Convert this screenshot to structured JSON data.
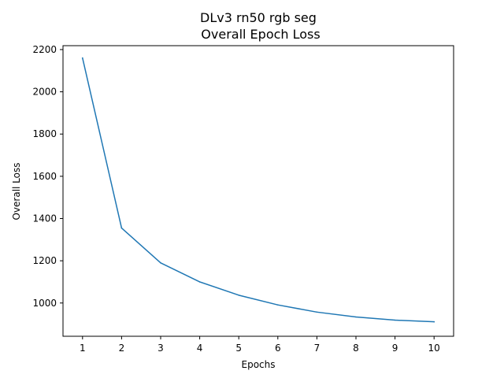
{
  "chart_data": {
    "type": "line",
    "title": "DLv3 rn50 rgb seg",
    "subtitle": "Overall Epoch Loss",
    "xlabel": "Epochs",
    "ylabel": "Overall Loss",
    "x": [
      1,
      2,
      3,
      4,
      5,
      6,
      7,
      8,
      9,
      10
    ],
    "series": [
      {
        "values": [
          2160,
          1355,
          1190,
          1100,
          1037,
          991,
          957,
          934,
          919,
          911
        ]
      }
    ],
    "xlim": [
      0.5,
      10.5
    ],
    "ylim": [
      842.55,
      2218.45
    ],
    "xticks": [
      1,
      2,
      3,
      4,
      5,
      6,
      7,
      8,
      9,
      10
    ],
    "yticks": [
      1000,
      1200,
      1400,
      1600,
      1800,
      2000,
      2200
    ],
    "xtick_labels": [
      "1",
      "2",
      "3",
      "4",
      "5",
      "6",
      "7",
      "8",
      "9",
      "10"
    ],
    "ytick_labels": [
      "1000",
      "1200",
      "1400",
      "1600",
      "1800",
      "2000",
      "2200"
    ],
    "line_color": "#1f77b4",
    "grid": false,
    "legend": false
  }
}
